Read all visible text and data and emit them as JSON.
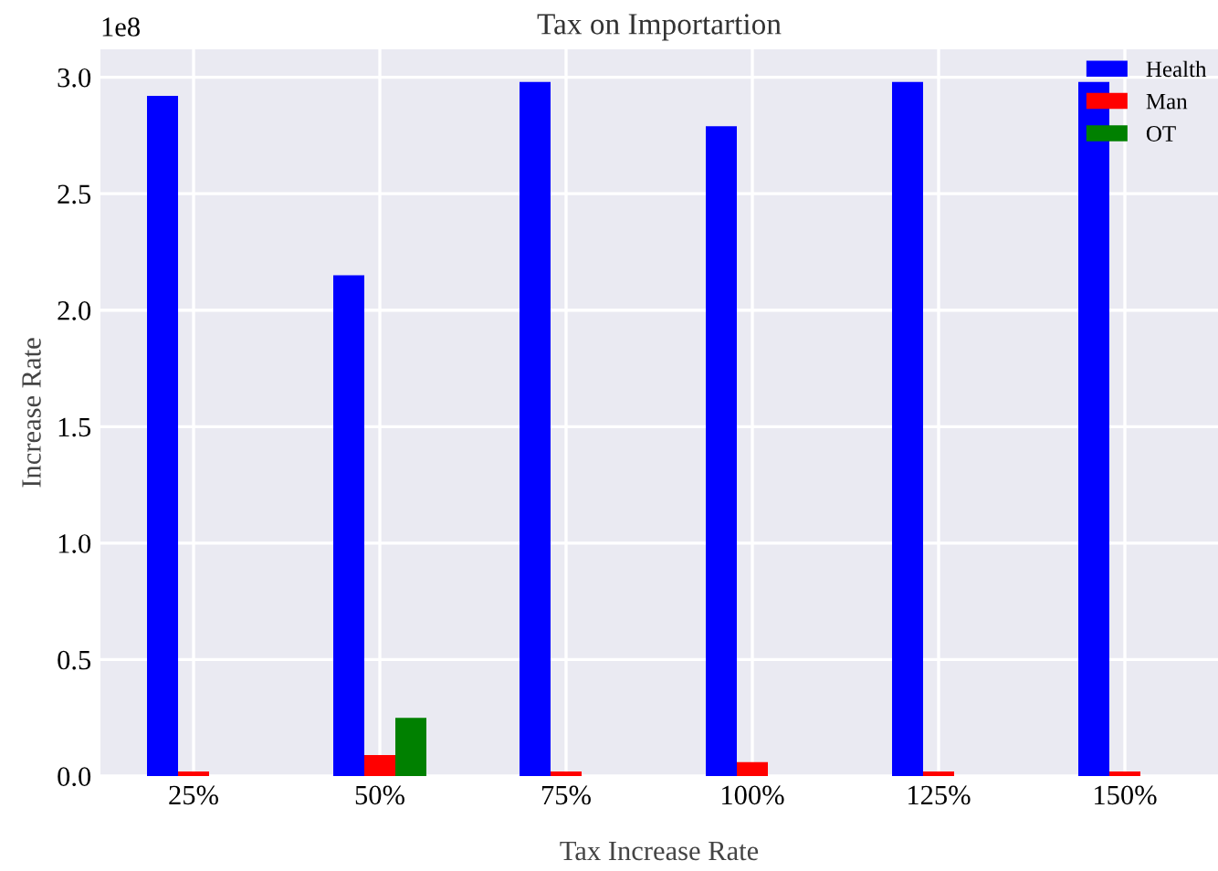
{
  "chart_data": {
    "type": "bar",
    "title": "Tax on Importartion",
    "xlabel": "Tax Increase Rate",
    "ylabel": "Increase Rate",
    "categories": [
      "25%",
      "50%",
      "75%",
      "100%",
      "125%",
      "150%"
    ],
    "series": [
      {
        "name": "Health",
        "color": "#0000ff",
        "values": [
          2.92,
          2.15,
          2.98,
          2.79,
          2.98,
          2.98
        ]
      },
      {
        "name": "Man",
        "color": "#ff0000",
        "values": [
          0.02,
          0.09,
          0.02,
          0.06,
          0.02,
          0.02
        ]
      },
      {
        "name": "OT",
        "color": "#008000",
        "values": [
          0,
          0.25,
          0,
          0,
          0,
          0
        ]
      }
    ],
    "ylim": [
      0,
      3.12
    ],
    "yticks": [
      {
        "value": 0,
        "label": "0.0"
      },
      0.5,
      {
        "value": 1,
        "label": "1.0"
      },
      1.5,
      {
        "value": 2,
        "label": "2.0"
      },
      2.5,
      {
        "value": 3,
        "label": "3.0"
      }
    ],
    "annotations": [
      "1e8"
    ],
    "grid": true,
    "legend": "top right"
  }
}
